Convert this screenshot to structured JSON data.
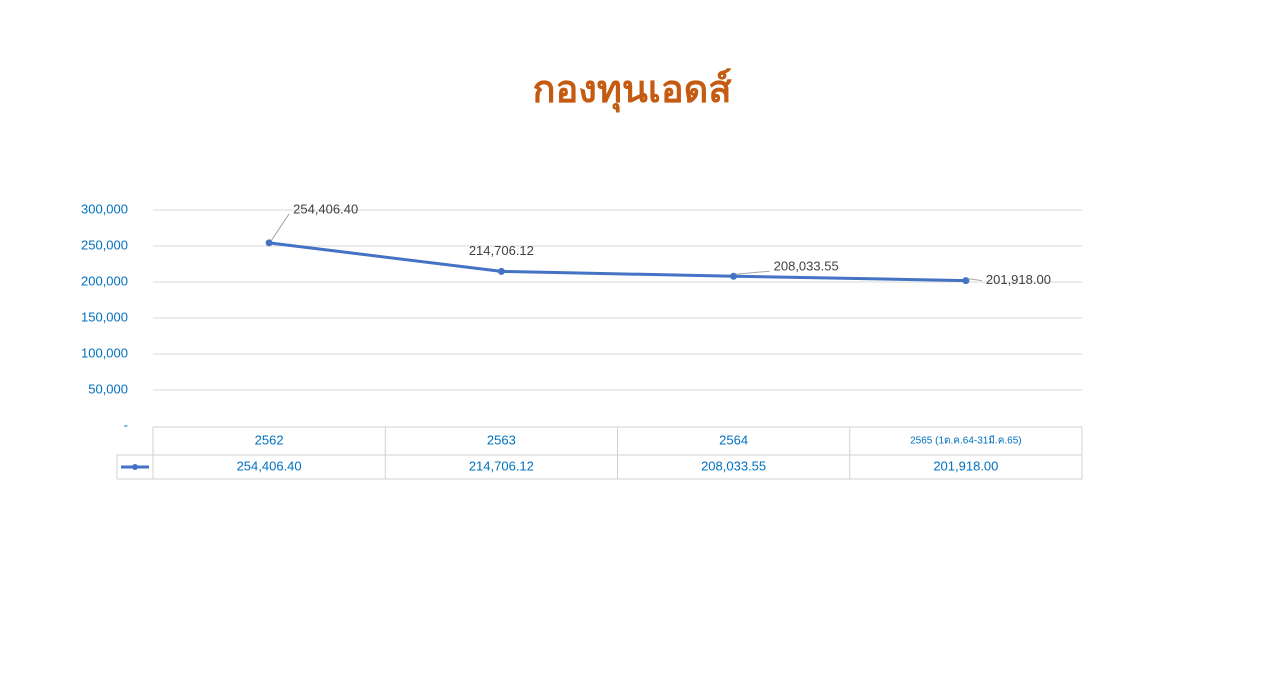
{
  "chart_data": {
    "type": "line",
    "title": "กองทุนเอดส์",
    "categories": [
      "2562",
      "2563",
      "2564",
      "2565 (1ต.ค.64-31มี.ค.65)"
    ],
    "values": [
      254406.4,
      214706.12,
      208033.55,
      201918.0
    ],
    "value_labels": [
      "254,406.40",
      "214,706.12",
      "208,033.55",
      "201,918.00"
    ],
    "color": "#4472c4",
    "ylim": [
      0,
      300000
    ],
    "yticks": [
      {
        "value": 0,
        "label": "-"
      },
      {
        "value": 50000,
        "label": "50,000"
      },
      {
        "value": 100000,
        "label": "100,000"
      },
      {
        "value": 150000,
        "label": "150,000"
      },
      {
        "value": 200000,
        "label": "200,000"
      },
      {
        "value": 250000,
        "label": "250,000"
      },
      {
        "value": 300000,
        "label": "300,000"
      }
    ],
    "grid": true
  }
}
